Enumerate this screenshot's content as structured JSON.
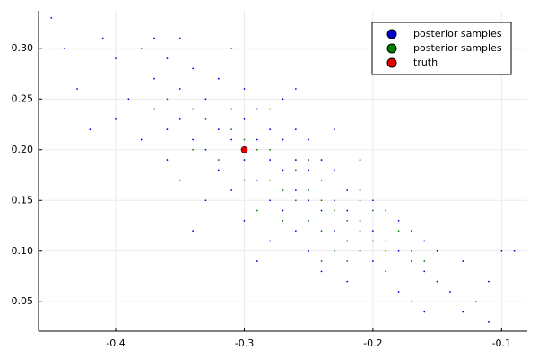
{
  "chart_data": {
    "type": "scatter",
    "xlim": [
      -0.46,
      -0.08
    ],
    "ylim": [
      0.021,
      0.337
    ],
    "xticks": [
      -0.4,
      -0.3,
      -0.2,
      -0.1
    ],
    "yticks": [
      0.05,
      {
        "value": 0.1,
        "label": "0.10"
      },
      0.15,
      {
        "value": 0.2,
        "label": "0.20"
      },
      0.25,
      {
        "value": 0.3,
        "label": "0.30"
      }
    ],
    "grid": true,
    "legend": "top-right",
    "series": [
      {
        "name": "posterior samples",
        "color": "#0000cc",
        "x": [
          -0.45,
          -0.44,
          -0.43,
          -0.41,
          -0.4,
          -0.4,
          -0.39,
          -0.38,
          -0.38,
          -0.37,
          -0.37,
          -0.36,
          -0.36,
          -0.36,
          -0.35,
          -0.35,
          -0.35,
          -0.34,
          -0.34,
          -0.34,
          -0.33,
          -0.33,
          -0.33,
          -0.32,
          -0.32,
          -0.32,
          -0.31,
          -0.31,
          -0.31,
          -0.3,
          -0.3,
          -0.3,
          -0.3,
          -0.29,
          -0.29,
          -0.29,
          -0.28,
          -0.28,
          -0.28,
          -0.28,
          -0.27,
          -0.27,
          -0.27,
          -0.27,
          -0.26,
          -0.26,
          -0.26,
          -0.26,
          -0.25,
          -0.25,
          -0.25,
          -0.25,
          -0.24,
          -0.24,
          -0.24,
          -0.24,
          -0.23,
          -0.23,
          -0.23,
          -0.22,
          -0.22,
          -0.22,
          -0.22,
          -0.21,
          -0.21,
          -0.21,
          -0.2,
          -0.2,
          -0.2,
          -0.19,
          -0.19,
          -0.19,
          -0.18,
          -0.18,
          -0.18,
          -0.17,
          -0.17,
          -0.17,
          -0.16,
          -0.16,
          -0.15,
          -0.15,
          -0.14,
          -0.13,
          -0.12,
          -0.11,
          -0.1,
          -0.09,
          -0.11,
          -0.13,
          -0.16,
          -0.42,
          -0.37,
          -0.34,
          -0.29,
          -0.23,
          -0.21,
          -0.31,
          -0.26,
          -0.35
        ],
        "y": [
          0.33,
          0.3,
          0.26,
          0.31,
          0.29,
          0.23,
          0.25,
          0.3,
          0.21,
          0.27,
          0.24,
          0.29,
          0.22,
          0.19,
          0.26,
          0.23,
          0.17,
          0.28,
          0.21,
          0.24,
          0.2,
          0.25,
          0.15,
          0.22,
          0.27,
          0.18,
          0.21,
          0.24,
          0.16,
          0.23,
          0.19,
          0.13,
          0.26,
          0.21,
          0.17,
          0.24,
          0.19,
          0.15,
          0.22,
          0.11,
          0.18,
          0.21,
          0.14,
          0.25,
          0.16,
          0.19,
          0.12,
          0.22,
          0.15,
          0.18,
          0.1,
          0.21,
          0.14,
          0.17,
          0.08,
          0.19,
          0.12,
          0.15,
          0.18,
          0.11,
          0.14,
          0.16,
          0.07,
          0.1,
          0.13,
          0.16,
          0.09,
          0.12,
          0.15,
          0.08,
          0.11,
          0.14,
          0.06,
          0.1,
          0.13,
          0.09,
          0.12,
          0.05,
          0.08,
          0.11,
          0.07,
          0.1,
          0.06,
          0.09,
          0.05,
          0.03,
          0.1,
          0.1,
          0.07,
          0.04,
          0.04,
          0.22,
          0.31,
          0.12,
          0.09,
          0.22,
          0.19,
          0.3,
          0.26,
          0.31
        ]
      },
      {
        "name": "posterior samples",
        "color": "#008000",
        "x": [
          -0.36,
          -0.34,
          -0.33,
          -0.32,
          -0.31,
          -0.3,
          -0.29,
          -0.29,
          -0.28,
          -0.28,
          -0.27,
          -0.27,
          -0.26,
          -0.26,
          -0.25,
          -0.25,
          -0.24,
          -0.24,
          -0.23,
          -0.23,
          -0.22,
          -0.22,
          -0.21,
          -0.2,
          -0.2,
          -0.19,
          -0.18,
          -0.17,
          -0.16,
          -0.3,
          -0.28,
          -0.25,
          -0.24,
          -0.21
        ],
        "y": [
          0.25,
          0.2,
          0.23,
          0.19,
          0.22,
          0.17,
          0.2,
          0.14,
          0.17,
          0.2,
          0.16,
          0.13,
          0.18,
          0.15,
          0.13,
          0.16,
          0.12,
          0.15,
          0.14,
          0.1,
          0.13,
          0.09,
          0.12,
          0.11,
          0.14,
          0.1,
          0.12,
          0.1,
          0.09,
          0.21,
          0.24,
          0.19,
          0.09,
          0.15
        ]
      },
      {
        "name": "truth",
        "color": "#e00000",
        "x": [
          -0.3
        ],
        "y": [
          0.2
        ]
      }
    ]
  }
}
